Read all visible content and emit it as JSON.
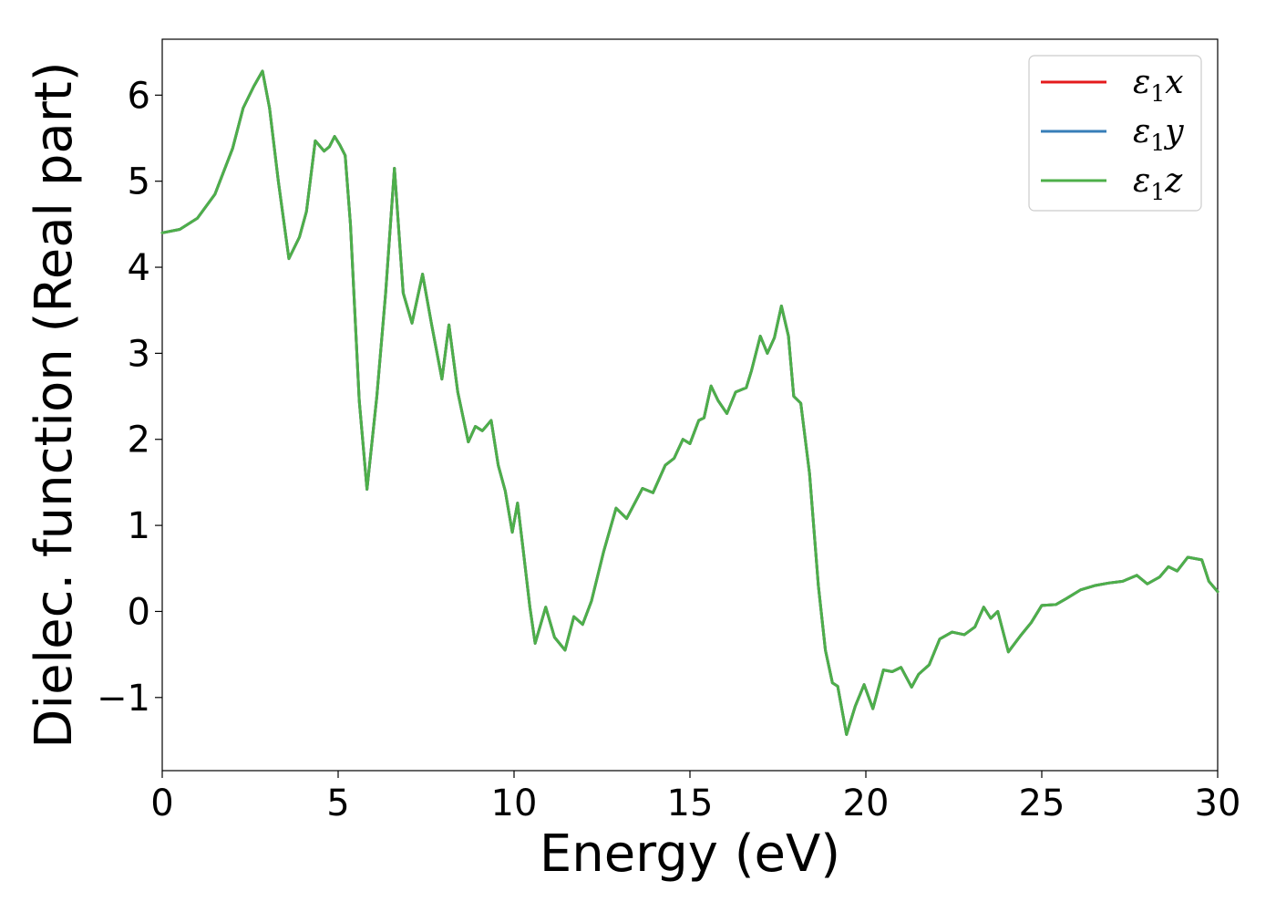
{
  "chart_data": {
    "type": "line",
    "xlabel": "Energy (eV)",
    "ylabel": "Dielec. function (Real part)",
    "xlim": [
      0,
      30
    ],
    "ylim": [
      -1.85,
      6.65
    ],
    "xticks": [
      0,
      5,
      10,
      15,
      20,
      25,
      30
    ],
    "yticks": [
      -1,
      0,
      1,
      2,
      3,
      4,
      5,
      6
    ],
    "xtick_labels": [
      "0",
      "5",
      "10",
      "15",
      "20",
      "25",
      "30"
    ],
    "ytick_labels": [
      "−1",
      "0",
      "1",
      "2",
      "3",
      "4",
      "5",
      "6"
    ],
    "grid": false,
    "legend": "top-right",
    "series": [
      {
        "name": "ε",
        "sub": "1",
        "suffix": "x",
        "color": "#e41a1c"
      },
      {
        "name": "ε",
        "sub": "1",
        "suffix": "y",
        "color": "#377eb8"
      },
      {
        "name": "ε",
        "sub": "1",
        "suffix": "z",
        "color": "#4daf4a"
      }
    ],
    "x": [
      0,
      0.5,
      1.0,
      1.5,
      2.0,
      2.3,
      2.6,
      2.85,
      3.05,
      3.3,
      3.6,
      3.9,
      4.1,
      4.35,
      4.6,
      4.75,
      4.9,
      5.05,
      5.2,
      5.35,
      5.6,
      5.82,
      6.1,
      6.35,
      6.6,
      6.85,
      7.1,
      7.4,
      7.65,
      7.95,
      8.15,
      8.4,
      8.7,
      8.9,
      9.1,
      9.35,
      9.55,
      9.75,
      9.95,
      10.1,
      10.25,
      10.45,
      10.6,
      10.9,
      11.15,
      11.45,
      11.7,
      11.95,
      12.2,
      12.55,
      12.9,
      13.2,
      13.65,
      13.95,
      14.3,
      14.55,
      14.8,
      15.0,
      15.25,
      15.4,
      15.6,
      15.8,
      16.05,
      16.3,
      16.6,
      16.75,
      17.0,
      17.2,
      17.4,
      17.6,
      17.8,
      17.95,
      18.15,
      18.4,
      18.65,
      18.85,
      19.05,
      19.2,
      19.45,
      19.7,
      19.95,
      20.2,
      20.5,
      20.75,
      21.0,
      21.3,
      21.5,
      21.8,
      22.1,
      22.45,
      22.8,
      23.1,
      23.35,
      23.55,
      23.75,
      24.05,
      24.4,
      24.7,
      25.0,
      25.4,
      25.7,
      26.1,
      26.5,
      26.9,
      27.3,
      27.7,
      28.0,
      28.35,
      28.6,
      28.85,
      29.15,
      29.55,
      29.75,
      30.0
    ],
    "values_x": [
      4.4,
      4.44,
      4.57,
      4.85,
      5.38,
      5.85,
      6.1,
      6.28,
      5.85,
      5.0,
      4.1,
      4.35,
      4.65,
      5.47,
      5.35,
      5.4,
      5.52,
      5.42,
      5.3,
      4.5,
      2.45,
      1.42,
      2.5,
      3.7,
      5.15,
      3.7,
      3.35,
      3.92,
      3.35,
      2.7,
      3.33,
      2.55,
      1.97,
      2.15,
      2.1,
      2.22,
      1.7,
      1.4,
      0.92,
      1.26,
      0.75,
      0.05,
      -0.37,
      0.05,
      -0.3,
      -0.45,
      -0.06,
      -0.15,
      0.12,
      0.7,
      1.2,
      1.08,
      1.43,
      1.38,
      1.7,
      1.78,
      2.0,
      1.95,
      2.22,
      2.25,
      2.62,
      2.45,
      2.3,
      2.55,
      2.6,
      2.8,
      3.2,
      3.0,
      3.18,
      3.55,
      3.2,
      2.5,
      2.42,
      1.6,
      0.3,
      -0.45,
      -0.83,
      -0.87,
      -1.43,
      -1.1,
      -0.85,
      -1.13,
      -0.68,
      -0.7,
      -0.65,
      -0.88,
      -0.73,
      -0.62,
      -0.32,
      -0.24,
      -0.27,
      -0.18,
      0.05,
      -0.08,
      0.0,
      -0.47,
      -0.28,
      -0.13,
      0.07,
      0.08,
      0.15,
      0.25,
      0.3,
      0.33,
      0.35,
      0.42,
      0.32,
      0.4,
      0.52,
      0.47,
      0.63,
      0.6,
      0.35,
      0.23
    ]
  }
}
